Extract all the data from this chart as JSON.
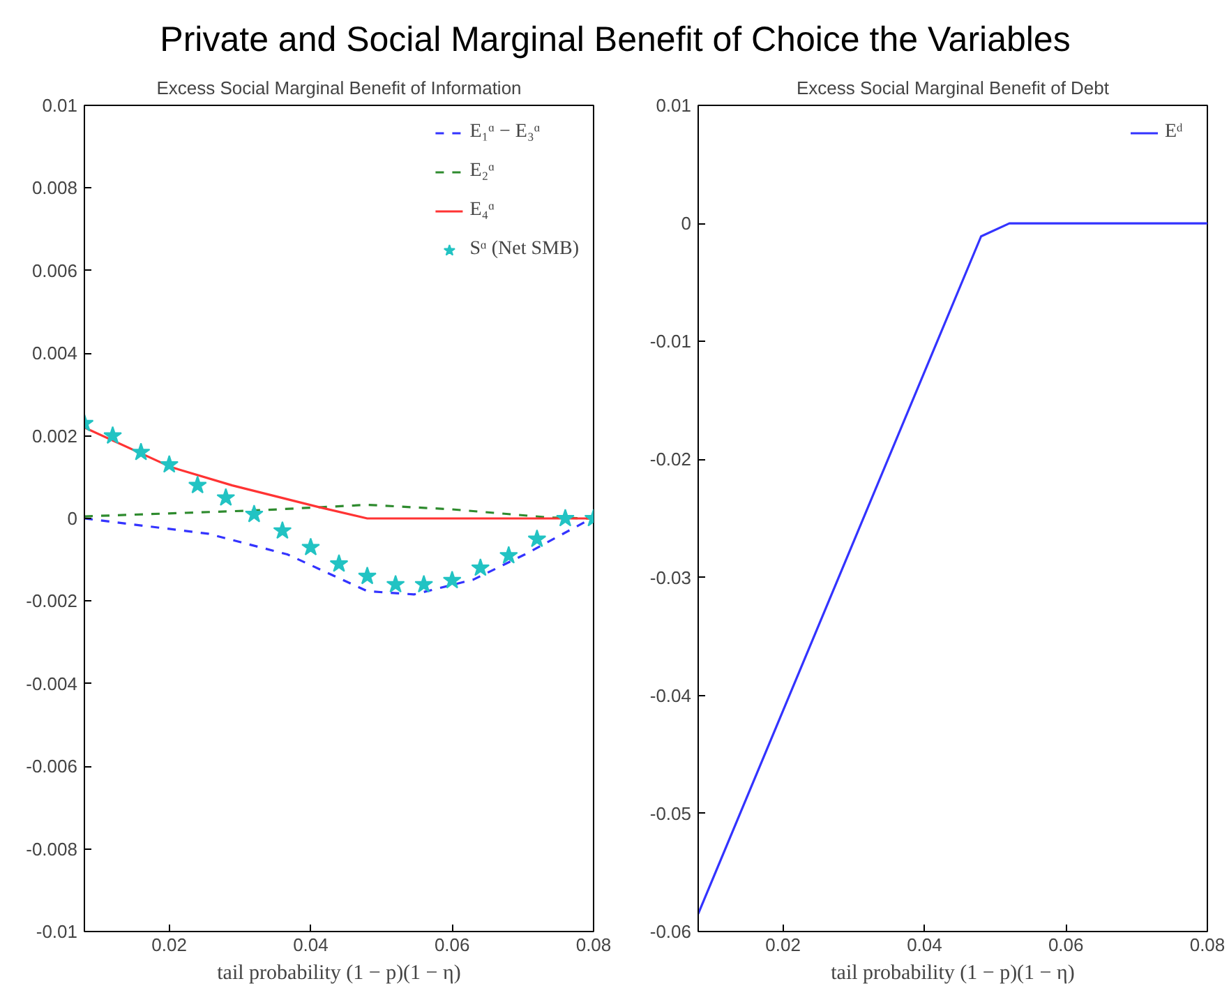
{
  "chart_data": [
    {
      "type": "line",
      "title": "Private and Social Marginal Benefit of Choice the Variables",
      "subtitle": "Excess Social Marginal Benefit of Information",
      "xlabel": "tail probability (1 − p)(1 − η)",
      "xlim": [
        0.008,
        0.08
      ],
      "xticks": [
        0.02,
        0.04,
        0.06,
        0.08
      ],
      "ylim": [
        -0.01,
        0.01
      ],
      "yticks": [
        -0.01,
        -0.008,
        -0.006,
        -0.004,
        -0.002,
        0,
        0.002,
        0.004,
        0.006,
        0.008,
        0.01
      ],
      "grid": false,
      "legend": "top right",
      "series": [
        {
          "name": "E₁ᵅ − E₃ᵅ",
          "color": "#3333ff",
          "line_style": "dashed",
          "x": [
            0.008,
            0.0255,
            0.0367,
            0.048,
            0.0546,
            0.063,
            0.0703,
            0.0797
          ],
          "values": [
            0,
            -0.00037,
            -0.00087,
            -0.00176,
            -0.00184,
            -0.00148,
            -0.00087,
            0
          ]
        },
        {
          "name": "E₂ᵅ",
          "color": "#2e8b2e",
          "line_style": "dashed",
          "x": [
            0.008,
            0.033,
            0.048,
            0.06,
            0.074,
            0.08
          ],
          "values": [
            5e-05,
            0.0002,
            0.00033,
            0.00022,
            2e-05,
            0
          ]
        },
        {
          "name": "E₄ᵅ",
          "color": "#ff3333",
          "line_style": "solid",
          "x": [
            0.008,
            0.0203,
            0.0289,
            0.041,
            0.048,
            0.08
          ],
          "values": [
            0.0022,
            0.00124,
            0.0008,
            0.00028,
            0,
            0
          ]
        },
        {
          "name": "Sᵅ (Net SMB)",
          "color": "#22c3c3",
          "type": "scatter",
          "marker": "star",
          "x": [
            0.008,
            0.012,
            0.016,
            0.02,
            0.024,
            0.028,
            0.032,
            0.036,
            0.04,
            0.044,
            0.048,
            0.052,
            0.056,
            0.06,
            0.064,
            0.068,
            0.072,
            0.076,
            0.08
          ],
          "values": [
            0.0023,
            0.002,
            0.0016,
            0.0013,
            0.0008,
            0.0005,
            0.0001,
            -0.0003,
            -0.0007,
            -0.0011,
            -0.0014,
            -0.0016,
            -0.0016,
            -0.0015,
            -0.0012,
            -0.0009,
            -0.0005,
            0,
            0
          ]
        }
      ]
    },
    {
      "type": "line",
      "subtitle": "Excess Social Marginal Benefit of Debt",
      "xlabel": "tail probability (1 − p)(1 − η)",
      "xlim": [
        0.008,
        0.08
      ],
      "xticks": [
        0.02,
        0.04,
        0.06,
        0.08
      ],
      "ylim": [
        -0.06,
        0.01
      ],
      "yticks": [
        -0.06,
        -0.05,
        -0.04,
        -0.03,
        -0.02,
        -0.01,
        0,
        0.01
      ],
      "grid": false,
      "legend": "top right",
      "series": [
        {
          "name": "Eᵈ",
          "color": "#3333ff",
          "line_style": "solid",
          "x": [
            0.008,
            0.048,
            0.052,
            0.08
          ],
          "values": [
            -0.0585,
            -0.0011,
            0,
            0
          ]
        }
      ]
    }
  ]
}
